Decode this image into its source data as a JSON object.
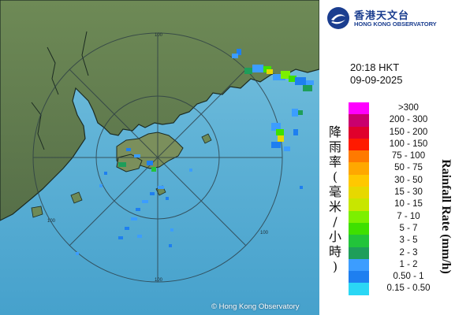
{
  "logo": {
    "name_zh": "香港天文台",
    "name_en": "HONG KONG OBSERVATORY",
    "icon": "hko-logo-icon"
  },
  "timestamp": {
    "time": "20:18 HKT",
    "date": "09-09-2025"
  },
  "legend": {
    "title_zh": "降\n雨\n率\n(\n毫\n米\n/\n小\n時\n)",
    "title_en": "Rainfall Rate (mm/h)",
    "items": [
      {
        "label": ">300",
        "color": "#ff00ff"
      },
      {
        "label": "200 - 300",
        "color": "#c9006e"
      },
      {
        "label": "150 - 200",
        "color": "#e0002c"
      },
      {
        "label": "100 - 150",
        "color": "#ff1a00"
      },
      {
        "label": "75 - 100",
        "color": "#ff7a00"
      },
      {
        "label": "50 - 75",
        "color": "#ffa800"
      },
      {
        "label": "30 - 50",
        "color": "#ffc800"
      },
      {
        "label": "15 - 30",
        "color": "#e7d800"
      },
      {
        "label": "10 - 15",
        "color": "#c8e600"
      },
      {
        "label": "7 - 10",
        "color": "#7cf000"
      },
      {
        "label": "5 - 7",
        "color": "#3ee000"
      },
      {
        "label": "3 - 5",
        "color": "#22c43a"
      },
      {
        "label": "2 - 3",
        "color": "#1e9e5a"
      },
      {
        "label": "1 - 2",
        "color": "#3c9dff"
      },
      {
        "label": "0.50 - 1",
        "color": "#1e7ff0"
      },
      {
        "label": "0.15 - 0.50",
        "color": "#2ad7f5"
      }
    ]
  },
  "map": {
    "range_labels": [
      "100",
      "100",
      "100",
      "100"
    ],
    "land_color": "#5f7a4e",
    "sea_color": "#5fb2d6"
  },
  "copyright": "© Hong Kong Observatory"
}
